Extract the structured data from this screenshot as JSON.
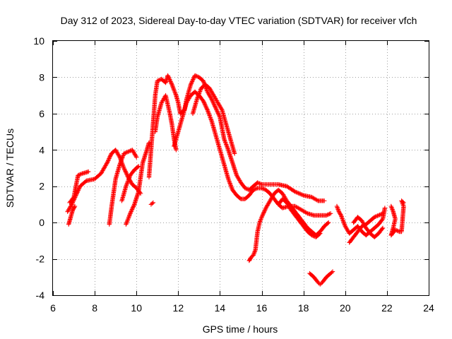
{
  "chart_data": {
    "type": "scatter",
    "title": "Day 312 of 2023, Sidereal Day-to-day VTEC variation (SDTVAR) for receiver vfch",
    "xlabel": "GPS time / hours",
    "ylabel": "SDTVAR / TECUs",
    "xlim": [
      6,
      24
    ],
    "ylim": [
      -4,
      10
    ],
    "xticks": [
      6,
      8,
      10,
      12,
      14,
      16,
      18,
      20,
      22,
      24
    ],
    "yticks": [
      -4,
      -2,
      0,
      2,
      4,
      6,
      8,
      10
    ],
    "grid": true,
    "marker": "+",
    "color": "#ff0000",
    "series": [
      {
        "name": "track-1",
        "points": [
          [
            6.7,
            0.6
          ],
          [
            6.9,
            1.0
          ],
          [
            7.1,
            1.5
          ],
          [
            7.3,
            2.0
          ],
          [
            7.6,
            2.3
          ],
          [
            8.0,
            2.4
          ],
          [
            8.3,
            2.7
          ],
          [
            8.6,
            3.3
          ],
          [
            8.8,
            3.8
          ],
          [
            9.0,
            4.0
          ],
          [
            9.2,
            3.6
          ],
          [
            9.4,
            3.0
          ],
          [
            9.6,
            2.5
          ],
          [
            9.8,
            2.1
          ],
          [
            10.0,
            1.9
          ],
          [
            10.2,
            1.6
          ]
        ]
      },
      {
        "name": "track-2",
        "points": [
          [
            6.8,
            1.1
          ],
          [
            7.0,
            1.4
          ],
          [
            7.1,
            2.0
          ],
          [
            7.2,
            2.6
          ],
          [
            7.4,
            2.7
          ],
          [
            7.7,
            2.8
          ]
        ]
      },
      {
        "name": "track-3",
        "points": [
          [
            6.75,
            -0.1
          ],
          [
            6.85,
            0.3
          ],
          [
            6.95,
            0.7
          ],
          [
            7.05,
            0.9
          ]
        ]
      },
      {
        "name": "track-4",
        "points": [
          [
            8.7,
            -0.1
          ],
          [
            8.8,
            0.8
          ],
          [
            8.9,
            1.6
          ],
          [
            9.0,
            2.4
          ],
          [
            9.2,
            3.2
          ],
          [
            9.4,
            3.8
          ],
          [
            9.6,
            3.9
          ],
          [
            9.8,
            4.0
          ],
          [
            10.0,
            3.6
          ]
        ]
      },
      {
        "name": "track-5",
        "points": [
          [
            9.5,
            -0.1
          ],
          [
            9.7,
            0.5
          ],
          [
            9.9,
            1.0
          ],
          [
            10.1,
            1.7
          ],
          [
            10.2,
            2.5
          ],
          [
            10.3,
            3.3
          ],
          [
            10.5,
            4.0
          ],
          [
            10.6,
            4.4
          ]
        ]
      },
      {
        "name": "track-6",
        "points": [
          [
            9.3,
            1.2
          ],
          [
            9.5,
            2.0
          ],
          [
            9.7,
            2.6
          ],
          [
            9.9,
            2.9
          ],
          [
            10.1,
            3.1
          ]
        ]
      },
      {
        "name": "track-7",
        "points": [
          [
            10.7,
            1.0
          ],
          [
            10.8,
            1.1
          ]
        ]
      },
      {
        "name": "track-8",
        "points": [
          [
            10.6,
            2.5
          ],
          [
            10.7,
            4.0
          ],
          [
            10.8,
            5.5
          ],
          [
            10.9,
            7.0
          ],
          [
            11.0,
            7.8
          ],
          [
            11.2,
            7.9
          ],
          [
            11.4,
            7.7
          ],
          [
            11.5,
            8.1
          ],
          [
            11.7,
            7.6
          ],
          [
            11.9,
            7.0
          ],
          [
            12.0,
            6.6
          ],
          [
            12.1,
            6.0
          ],
          [
            12.3,
            6.2
          ],
          [
            12.4,
            6.8
          ],
          [
            12.6,
            7.6
          ],
          [
            12.8,
            8.1
          ],
          [
            13.0,
            8.0
          ],
          [
            13.2,
            7.8
          ],
          [
            13.4,
            7.2
          ],
          [
            13.6,
            6.8
          ],
          [
            13.8,
            6.3
          ],
          [
            14.0,
            5.8
          ],
          [
            14.1,
            5.2
          ],
          [
            14.2,
            4.6
          ],
          [
            14.4,
            4.0
          ],
          [
            14.6,
            3.3
          ],
          [
            14.8,
            2.6
          ],
          [
            15.0,
            2.2
          ],
          [
            15.2,
            1.9
          ],
          [
            15.4,
            1.8
          ],
          [
            15.6,
            2.0
          ],
          [
            15.8,
            2.2
          ],
          [
            16.0,
            2.1
          ],
          [
            16.4,
            2.1
          ],
          [
            16.8,
            2.1
          ],
          [
            17.2,
            2.0
          ],
          [
            17.6,
            1.7
          ],
          [
            18.0,
            1.5
          ],
          [
            18.4,
            1.4
          ],
          [
            18.7,
            1.2
          ],
          [
            19.0,
            1.2
          ]
        ]
      },
      {
        "name": "track-9",
        "points": [
          [
            10.9,
            5.0
          ],
          [
            11.0,
            5.8
          ],
          [
            11.2,
            6.6
          ],
          [
            11.4,
            7.0
          ],
          [
            11.5,
            6.5
          ],
          [
            11.6,
            6.0
          ],
          [
            11.7,
            5.4
          ],
          [
            11.8,
            4.6
          ],
          [
            11.9,
            4.0
          ]
        ]
      },
      {
        "name": "track-10",
        "points": [
          [
            11.8,
            4.2
          ],
          [
            12.0,
            5.0
          ],
          [
            12.2,
            5.8
          ],
          [
            12.4,
            6.6
          ],
          [
            12.6,
            7.0
          ],
          [
            12.8,
            7.2
          ],
          [
            13.0,
            7.0
          ],
          [
            13.2,
            6.7
          ],
          [
            13.4,
            6.2
          ],
          [
            13.6,
            5.6
          ],
          [
            13.8,
            4.8
          ],
          [
            14.0,
            4.0
          ],
          [
            14.2,
            3.2
          ],
          [
            14.4,
            2.4
          ],
          [
            14.6,
            1.8
          ],
          [
            14.8,
            1.5
          ],
          [
            15.0,
            1.3
          ],
          [
            15.2,
            1.3
          ],
          [
            15.4,
            1.5
          ],
          [
            15.6,
            1.8
          ],
          [
            15.8,
            1.9
          ],
          [
            16.0,
            1.9
          ],
          [
            16.2,
            1.8
          ],
          [
            16.4,
            1.6
          ],
          [
            16.6,
            1.3
          ],
          [
            16.8,
            1.0
          ],
          [
            17.0,
            0.8
          ],
          [
            17.3,
            0.9
          ],
          [
            17.6,
            0.9
          ],
          [
            17.9,
            0.7
          ],
          [
            18.2,
            0.5
          ],
          [
            18.5,
            0.4
          ],
          [
            18.8,
            0.4
          ],
          [
            19.1,
            0.4
          ],
          [
            19.3,
            0.5
          ]
        ]
      },
      {
        "name": "track-11",
        "points": [
          [
            12.7,
            6.0
          ],
          [
            12.9,
            6.8
          ],
          [
            13.1,
            7.4
          ],
          [
            13.3,
            7.6
          ],
          [
            13.5,
            7.4
          ],
          [
            13.7,
            7.0
          ],
          [
            13.9,
            6.6
          ],
          [
            14.1,
            6.2
          ],
          [
            14.3,
            5.4
          ],
          [
            14.5,
            4.6
          ],
          [
            14.7,
            3.8
          ]
        ]
      },
      {
        "name": "track-12",
        "points": [
          [
            15.4,
            -2.1
          ],
          [
            15.5,
            -1.9
          ],
          [
            15.6,
            -1.8
          ],
          [
            15.7,
            -1.5
          ],
          [
            15.8,
            -0.5
          ],
          [
            15.9,
            0
          ],
          [
            16.0,
            0.3
          ],
          [
            16.2,
            0.8
          ],
          [
            16.4,
            1.2
          ],
          [
            16.6,
            1.6
          ],
          [
            16.8,
            1.8
          ],
          [
            17.0,
            1.6
          ],
          [
            17.2,
            1.2
          ],
          [
            17.4,
            0.9
          ],
          [
            17.6,
            0.6
          ],
          [
            17.8,
            0.3
          ],
          [
            18.0,
            0.0
          ],
          [
            18.2,
            -0.3
          ],
          [
            18.4,
            -0.5
          ],
          [
            18.6,
            -0.7
          ],
          [
            18.8,
            -0.5
          ],
          [
            19.0,
            -0.2
          ],
          [
            19.2,
            0.0
          ]
        ]
      },
      {
        "name": "track-13",
        "points": [
          [
            16.8,
            1.0
          ],
          [
            17.0,
            1.3
          ],
          [
            17.2,
            1.1
          ],
          [
            17.4,
            0.7
          ],
          [
            17.6,
            0.4
          ],
          [
            17.8,
            0.1
          ],
          [
            18.0,
            -0.2
          ],
          [
            18.2,
            -0.5
          ],
          [
            18.4,
            -0.7
          ],
          [
            18.6,
            -0.8
          ],
          [
            18.8,
            -0.6
          ]
        ]
      },
      {
        "name": "track-14",
        "points": [
          [
            18.3,
            -2.8
          ],
          [
            18.5,
            -3.0
          ],
          [
            18.7,
            -3.3
          ],
          [
            18.8,
            -3.4
          ],
          [
            18.9,
            -3.3
          ],
          [
            19.1,
            -3.0
          ],
          [
            19.3,
            -2.8
          ],
          [
            19.4,
            -2.7
          ]
        ]
      },
      {
        "name": "track-15",
        "points": [
          [
            19.6,
            0.9
          ],
          [
            19.7,
            0.6
          ],
          [
            19.8,
            0.4
          ],
          [
            19.9,
            0.1
          ],
          [
            20.0,
            -0.2
          ],
          [
            20.2,
            -0.6
          ],
          [
            20.4,
            -0.4
          ],
          [
            20.6,
            -0.2
          ],
          [
            20.8,
            -0.5
          ],
          [
            21.0,
            -0.7
          ],
          [
            21.2,
            -0.5
          ],
          [
            21.4,
            -0.3
          ],
          [
            21.6,
            -0.1
          ],
          [
            21.8,
            0.2
          ],
          [
            21.9,
            0.8
          ]
        ]
      },
      {
        "name": "track-16",
        "points": [
          [
            20.2,
            -1.1
          ],
          [
            20.4,
            -0.8
          ],
          [
            20.6,
            -0.5
          ],
          [
            20.8,
            -0.2
          ],
          [
            21.0,
            -0.1
          ],
          [
            21.2,
            0.1
          ],
          [
            21.4,
            0.3
          ],
          [
            21.6,
            0.4
          ],
          [
            21.8,
            0.5
          ]
        ]
      },
      {
        "name": "track-17",
        "points": [
          [
            20.4,
            0.0
          ],
          [
            20.6,
            0.3
          ],
          [
            20.8,
            0.1
          ],
          [
            21.0,
            -0.3
          ],
          [
            21.2,
            -0.6
          ],
          [
            21.4,
            -0.8
          ],
          [
            21.6,
            -0.6
          ],
          [
            21.8,
            -0.3
          ]
        ]
      },
      {
        "name": "track-18",
        "points": [
          [
            22.2,
            0.9
          ],
          [
            22.3,
            0.6
          ],
          [
            22.4,
            0.2
          ],
          [
            22.3,
            -0.3
          ],
          [
            22.2,
            -0.7
          ],
          [
            22.4,
            -0.4
          ],
          [
            22.6,
            -0.5
          ],
          [
            22.7,
            -0.5
          ],
          [
            22.8,
            0.9
          ],
          [
            22.7,
            1.2
          ],
          [
            22.8,
            1.1
          ]
        ]
      }
    ]
  }
}
